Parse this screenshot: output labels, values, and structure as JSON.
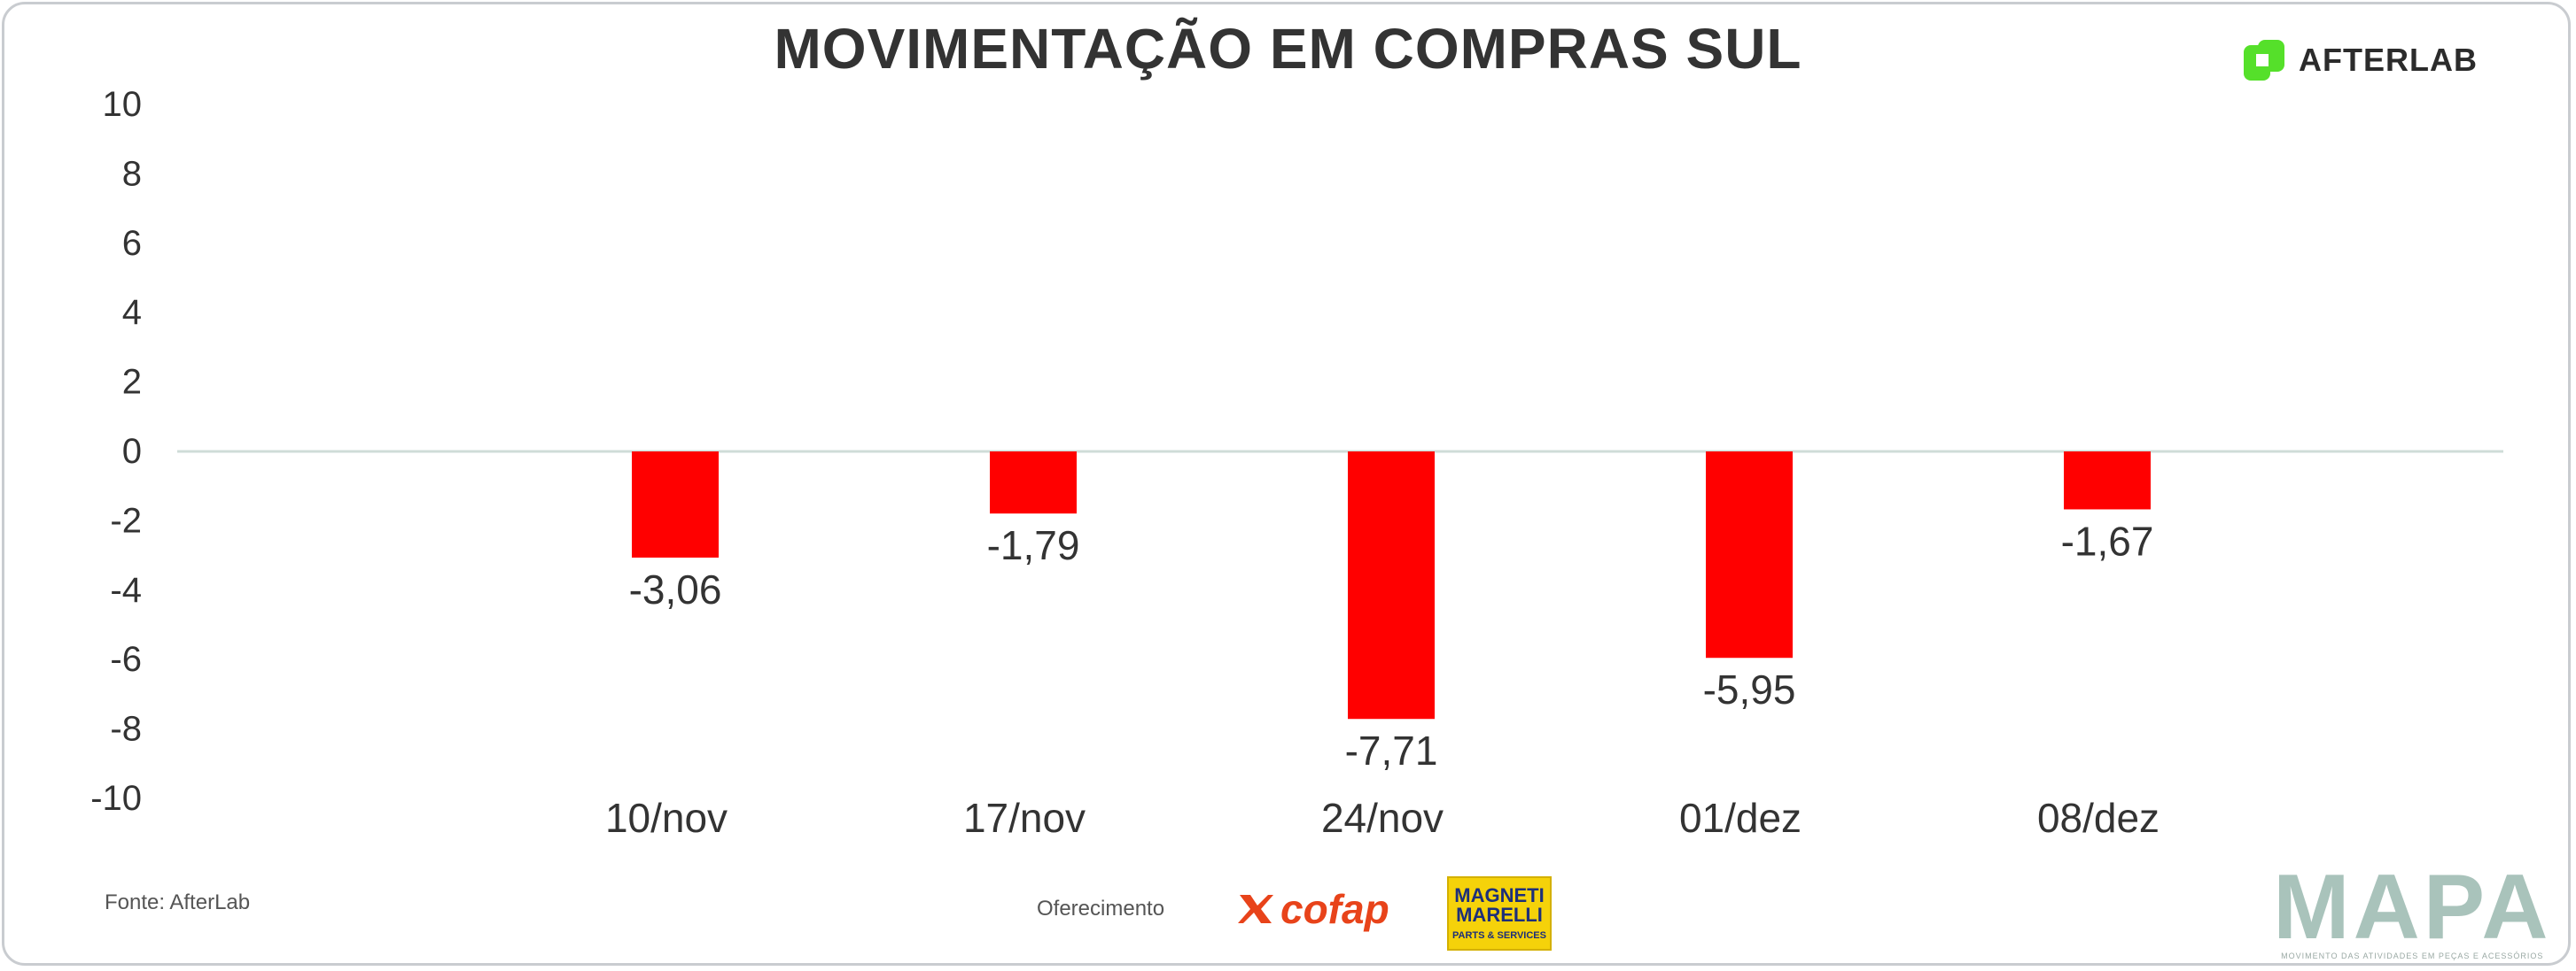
{
  "title": "MOVIMENTAÇÃO EM COMPRAS SUL",
  "brand": {
    "name": "AFTERLAB",
    "accent": "#55e02a"
  },
  "footer": {
    "source": "Fonte: AfterLab",
    "sponsor_label": "Oferecimento",
    "sponsors": [
      "cofap",
      "MAGNETI MARELLI",
      "PARTS & SERVICES"
    ],
    "mapa": "MAPA",
    "mapa_tagline": "MOVIMENTO DAS ATIVIDADES EM PEÇAS E ACESSÓRIOS"
  },
  "chart_data": {
    "type": "bar",
    "title": "MOVIMENTAÇÃO EM COMPRAS SUL",
    "categories": [
      "10/nov",
      "17/nov",
      "24/nov",
      "01/dez",
      "08/dez"
    ],
    "values": [
      -3.06,
      -1.79,
      -7.71,
      -5.95,
      -1.67
    ],
    "labels": [
      "-3,06",
      "-1,79",
      "-7,71",
      "-5,95",
      "-1,67"
    ],
    "ylim": [
      -10,
      10
    ],
    "yticks": [
      -10,
      -8,
      -6,
      -4,
      -2,
      0,
      2,
      4,
      6,
      8,
      10
    ],
    "bar_color": "#ff0000",
    "zero_line_color": "#cfdcd8",
    "grid": false,
    "legend": "none",
    "xlabel": "",
    "ylabel": ""
  }
}
